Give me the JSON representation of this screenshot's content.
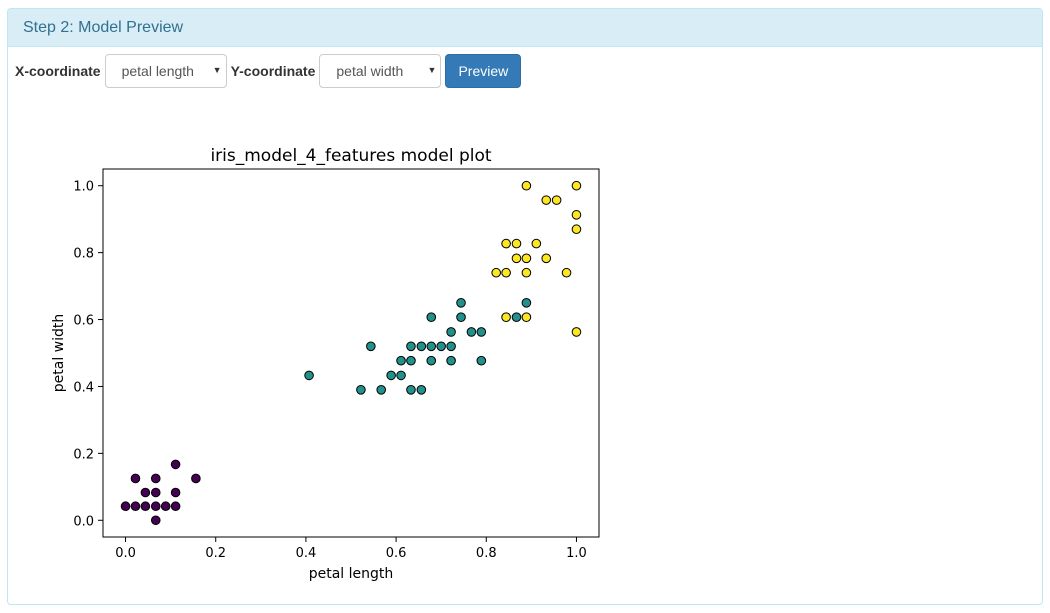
{
  "panel": {
    "title": "Step 2: Model Preview"
  },
  "controls": {
    "x_label": "X-coordinate",
    "x_selected": "petal length",
    "y_label": "Y-coordinate",
    "y_selected": "petal width",
    "preview_label": "Preview"
  },
  "chart_data": {
    "type": "scatter",
    "title": "iris_model_4_features model plot",
    "xlabel": "petal length",
    "ylabel": "petal width",
    "xlim": [
      -0.05,
      1.05
    ],
    "ylim": [
      -0.05,
      1.05
    ],
    "xticks": [
      0.0,
      0.2,
      0.4,
      0.6,
      0.8,
      1.0
    ],
    "yticks": [
      0.0,
      0.2,
      0.4,
      0.6,
      0.8,
      1.0
    ],
    "grid": false,
    "series": [
      {
        "color": "#440154",
        "points": [
          [
            0.0,
            0.042
          ],
          [
            0.022,
            0.042
          ],
          [
            0.044,
            0.042
          ],
          [
            0.067,
            0.042
          ],
          [
            0.089,
            0.042
          ],
          [
            0.111,
            0.042
          ],
          [
            0.022,
            0.125
          ],
          [
            0.067,
            0.125
          ],
          [
            0.156,
            0.125
          ],
          [
            0.044,
            0.083
          ],
          [
            0.067,
            0.083
          ],
          [
            0.111,
            0.083
          ],
          [
            0.111,
            0.167
          ],
          [
            0.067,
            0.0
          ]
        ]
      },
      {
        "color": "#21918c",
        "points": [
          [
            0.407,
            0.433
          ],
          [
            0.522,
            0.39
          ],
          [
            0.567,
            0.39
          ],
          [
            0.633,
            0.39
          ],
          [
            0.656,
            0.39
          ],
          [
            0.544,
            0.52
          ],
          [
            0.589,
            0.433
          ],
          [
            0.611,
            0.433
          ],
          [
            0.611,
            0.477
          ],
          [
            0.633,
            0.477
          ],
          [
            0.633,
            0.52
          ],
          [
            0.656,
            0.52
          ],
          [
            0.678,
            0.52
          ],
          [
            0.7,
            0.52
          ],
          [
            0.722,
            0.52
          ],
          [
            0.678,
            0.477
          ],
          [
            0.722,
            0.477
          ],
          [
            0.722,
            0.563
          ],
          [
            0.678,
            0.607
          ],
          [
            0.744,
            0.607
          ],
          [
            0.744,
            0.65
          ],
          [
            0.767,
            0.563
          ],
          [
            0.789,
            0.563
          ],
          [
            0.789,
            0.477
          ],
          [
            0.867,
            0.607
          ],
          [
            0.889,
            0.65
          ]
        ]
      },
      {
        "color": "#fde725",
        "points": [
          [
            0.889,
            1.0
          ],
          [
            1.0,
            1.0
          ],
          [
            0.933,
            0.957
          ],
          [
            0.956,
            0.957
          ],
          [
            1.0,
            0.913
          ],
          [
            1.0,
            0.87
          ],
          [
            0.844,
            0.827
          ],
          [
            0.867,
            0.827
          ],
          [
            0.911,
            0.827
          ],
          [
            0.867,
            0.783
          ],
          [
            0.889,
            0.783
          ],
          [
            0.933,
            0.783
          ],
          [
            0.822,
            0.74
          ],
          [
            0.844,
            0.74
          ],
          [
            0.889,
            0.74
          ],
          [
            0.978,
            0.74
          ],
          [
            0.844,
            0.607
          ],
          [
            0.889,
            0.607
          ],
          [
            1.0,
            0.563
          ]
        ]
      }
    ]
  }
}
